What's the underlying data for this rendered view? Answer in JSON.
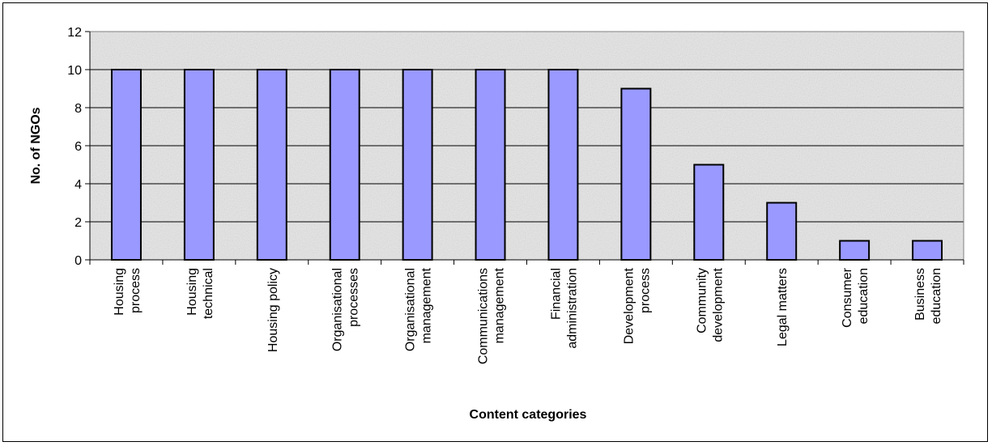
{
  "chart_data": {
    "type": "bar",
    "title": "",
    "xlabel": "Content categories",
    "ylabel": "No. of NGOs",
    "ylim": [
      0,
      12
    ],
    "yticks": [
      0,
      2,
      4,
      6,
      8,
      10,
      12
    ],
    "grid": true,
    "legend": "none",
    "colors": {
      "bar": "#9999ff",
      "plot_bg": "#e6e6e6",
      "gridline": "#000000"
    },
    "categories": [
      [
        "Housing",
        "process"
      ],
      [
        "Housing",
        "technical"
      ],
      [
        "Housing policy"
      ],
      [
        "Organisational",
        "processes"
      ],
      [
        "Organisational",
        "management"
      ],
      [
        "Communications",
        "management"
      ],
      [
        "Financial",
        "administration"
      ],
      [
        "Development",
        "process"
      ],
      [
        "Community",
        "development"
      ],
      [
        "Legal matters"
      ],
      [
        "Consumer",
        "education"
      ],
      [
        "Business",
        "education"
      ]
    ],
    "values": [
      10,
      10,
      10,
      10,
      10,
      10,
      10,
      9,
      5,
      3,
      1,
      1
    ]
  }
}
